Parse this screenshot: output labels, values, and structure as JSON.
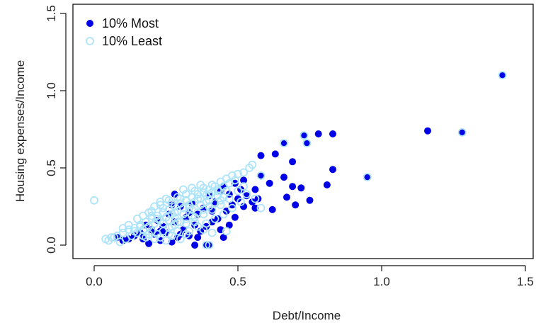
{
  "chart_data": {
    "type": "scatter",
    "xlabel": "Debt/Income",
    "ylabel": "Housing expenses/Income",
    "xlim": [
      0,
      1.5
    ],
    "ylim": [
      0,
      1.5
    ],
    "x_ticks": [
      "0.0",
      "0.5",
      "1.0",
      "1.5"
    ],
    "y_ticks": [
      "0.0",
      "0.5",
      "1.0",
      "1.5"
    ],
    "legend_position": "top-left",
    "grid": false,
    "colors": {
      "most": "#0000e6",
      "least": "#aee4fa"
    },
    "series": [
      {
        "name": "10% Most",
        "marker": "filled-circle",
        "points": [
          [
            1.42,
            1.1
          ],
          [
            1.28,
            0.73
          ],
          [
            1.16,
            0.74
          ],
          [
            0.95,
            0.44
          ],
          [
            0.83,
            0.72
          ],
          [
            0.83,
            0.49
          ],
          [
            0.81,
            0.39
          ],
          [
            0.78,
            0.72
          ],
          [
            0.75,
            0.29
          ],
          [
            0.74,
            0.66
          ],
          [
            0.73,
            0.71
          ],
          [
            0.72,
            0.37
          ],
          [
            0.7,
            0.26
          ],
          [
            0.69,
            0.38
          ],
          [
            0.69,
            0.54
          ],
          [
            0.67,
            0.31
          ],
          [
            0.66,
            0.44
          ],
          [
            0.66,
            0.66
          ],
          [
            0.63,
            0.59
          ],
          [
            0.62,
            0.23
          ],
          [
            0.61,
            0.4
          ],
          [
            0.58,
            0.58
          ],
          [
            0.58,
            0.45
          ],
          [
            0.57,
            0.3
          ],
          [
            0.56,
            0.36
          ],
          [
            0.56,
            0.24
          ],
          [
            0.55,
            0.28
          ],
          [
            0.53,
            0.32
          ],
          [
            0.52,
            0.25
          ],
          [
            0.51,
            0.36
          ],
          [
            0.5,
            0.3
          ],
          [
            0.49,
            0.4
          ],
          [
            0.48,
            0.26
          ],
          [
            0.47,
            0.33
          ],
          [
            0.46,
            0.22
          ],
          [
            0.45,
            0.38
          ],
          [
            0.44,
            0.35
          ],
          [
            0.43,
            0.17
          ],
          [
            0.42,
            0.28
          ],
          [
            0.41,
            0.15
          ],
          [
            0.4,
            0.32
          ],
          [
            0.39,
            0.12
          ],
          [
            0.38,
            0.24
          ],
          [
            0.37,
            0.09
          ],
          [
            0.36,
            0.2
          ],
          [
            0.35,
            0.13
          ],
          [
            0.34,
            0.27
          ],
          [
            0.33,
            0.06
          ],
          [
            0.32,
            0.18
          ],
          [
            0.31,
            0.1
          ],
          [
            0.3,
            0.25
          ],
          [
            0.29,
            0.05
          ],
          [
            0.28,
            0.15
          ],
          [
            0.27,
            0.02
          ],
          [
            0.26,
            0.2
          ],
          [
            0.25,
            0.08
          ],
          [
            0.24,
            0.12
          ],
          [
            0.23,
            0.03
          ],
          [
            0.22,
            0.16
          ],
          [
            0.21,
            0.07
          ],
          [
            0.2,
            0.1
          ],
          [
            0.19,
            0.01
          ],
          [
            0.18,
            0.13
          ],
          [
            0.17,
            0.04
          ],
          [
            0.16,
            0.08
          ],
          [
            0.14,
            0.06
          ],
          [
            0.12,
            0.04
          ],
          [
            0.1,
            0.03
          ],
          [
            0.08,
            0.05
          ],
          [
            0.35,
            0.0
          ],
          [
            0.39,
            0.0
          ],
          [
            0.4,
            0.0
          ],
          [
            0.28,
            0.33
          ],
          [
            0.45,
            0.05
          ],
          [
            0.47,
            0.13
          ],
          [
            0.49,
            0.18
          ],
          [
            0.52,
            0.42
          ],
          [
            0.3,
            0.07
          ],
          [
            0.33,
            0.21
          ],
          [
            0.36,
            0.05
          ],
          [
            0.41,
            0.22
          ],
          [
            0.44,
            0.1
          ],
          [
            0.27,
            0.26
          ],
          [
            0.23,
            0.09
          ]
        ]
      },
      {
        "name": "10% Least",
        "marker": "open-circle",
        "points": [
          [
            1.42,
            1.1
          ],
          [
            1.28,
            0.73
          ],
          [
            0.95,
            0.44
          ],
          [
            0.74,
            0.66
          ],
          [
            0.73,
            0.71
          ],
          [
            0.66,
            0.66
          ],
          [
            0.58,
            0.45
          ],
          [
            0.58,
            0.24
          ],
          [
            0.56,
            0.3
          ],
          [
            0.55,
            0.52
          ],
          [
            0.54,
            0.5
          ],
          [
            0.52,
            0.47
          ],
          [
            0.5,
            0.46
          ],
          [
            0.48,
            0.45
          ],
          [
            0.46,
            0.43
          ],
          [
            0.44,
            0.41
          ],
          [
            0.42,
            0.38
          ],
          [
            0.4,
            0.36
          ],
          [
            0.38,
            0.34
          ],
          [
            0.36,
            0.33
          ],
          [
            0.34,
            0.31
          ],
          [
            0.32,
            0.29
          ],
          [
            0.3,
            0.27
          ],
          [
            0.28,
            0.25
          ],
          [
            0.26,
            0.23
          ],
          [
            0.24,
            0.21
          ],
          [
            0.22,
            0.19
          ],
          [
            0.2,
            0.17
          ],
          [
            0.18,
            0.15
          ],
          [
            0.16,
            0.13
          ],
          [
            0.14,
            0.11
          ],
          [
            0.12,
            0.1
          ],
          [
            0.1,
            0.08
          ],
          [
            0.08,
            0.06
          ],
          [
            0.06,
            0.05
          ],
          [
            0.04,
            0.04
          ],
          [
            0.0,
            0.29
          ],
          [
            0.05,
            0.03
          ],
          [
            0.07,
            0.05
          ],
          [
            0.09,
            0.02
          ],
          [
            0.11,
            0.04
          ],
          [
            0.13,
            0.06
          ],
          [
            0.15,
            0.08
          ],
          [
            0.17,
            0.1
          ],
          [
            0.19,
            0.12
          ],
          [
            0.21,
            0.14
          ],
          [
            0.23,
            0.16
          ],
          [
            0.25,
            0.18
          ],
          [
            0.27,
            0.2
          ],
          [
            0.29,
            0.22
          ],
          [
            0.31,
            0.24
          ],
          [
            0.33,
            0.26
          ],
          [
            0.35,
            0.28
          ],
          [
            0.37,
            0.3
          ],
          [
            0.39,
            0.32
          ],
          [
            0.41,
            0.34
          ],
          [
            0.43,
            0.36
          ],
          [
            0.45,
            0.38
          ],
          [
            0.47,
            0.4
          ],
          [
            0.49,
            0.42
          ],
          [
            0.22,
            0.07
          ],
          [
            0.24,
            0.09
          ],
          [
            0.26,
            0.11
          ],
          [
            0.28,
            0.13
          ],
          [
            0.3,
            0.15
          ],
          [
            0.32,
            0.17
          ],
          [
            0.34,
            0.19
          ],
          [
            0.36,
            0.21
          ],
          [
            0.38,
            0.23
          ],
          [
            0.4,
            0.25
          ],
          [
            0.42,
            0.27
          ],
          [
            0.44,
            0.29
          ],
          [
            0.2,
            0.22
          ],
          [
            0.23,
            0.26
          ],
          [
            0.26,
            0.29
          ],
          [
            0.29,
            0.31
          ],
          [
            0.32,
            0.33
          ],
          [
            0.35,
            0.35
          ],
          [
            0.38,
            0.37
          ],
          [
            0.41,
            0.39
          ],
          [
            0.18,
            0.05
          ],
          [
            0.21,
            0.04
          ],
          [
            0.25,
            0.03
          ],
          [
            0.27,
            0.06
          ],
          [
            0.3,
            0.04
          ],
          [
            0.33,
            0.09
          ],
          [
            0.36,
            0.12
          ],
          [
            0.39,
            0.14
          ],
          [
            0.42,
            0.17
          ],
          [
            0.45,
            0.2
          ],
          [
            0.48,
            0.24
          ],
          [
            0.51,
            0.28
          ],
          [
            0.53,
            0.33
          ],
          [
            0.15,
            0.17
          ],
          [
            0.17,
            0.19
          ],
          [
            0.19,
            0.21
          ],
          [
            0.24,
            0.14
          ],
          [
            0.26,
            0.16
          ],
          [
            0.28,
            0.18
          ],
          [
            0.31,
            0.2
          ],
          [
            0.34,
            0.23
          ],
          [
            0.37,
            0.26
          ],
          [
            0.4,
            0.29
          ],
          [
            0.43,
            0.32
          ],
          [
            0.46,
            0.35
          ],
          [
            0.12,
            0.13
          ],
          [
            0.1,
            0.11
          ],
          [
            0.2,
            0.09
          ],
          [
            0.27,
            0.12
          ],
          [
            0.29,
            0.15
          ],
          [
            0.32,
            0.14
          ],
          [
            0.35,
            0.18
          ],
          [
            0.38,
            0.2
          ],
          [
            0.41,
            0.23
          ],
          [
            0.44,
            0.26
          ],
          [
            0.47,
            0.3
          ],
          [
            0.31,
            0.36
          ],
          [
            0.34,
            0.37
          ],
          [
            0.37,
            0.39
          ],
          [
            0.25,
            0.3
          ],
          [
            0.21,
            0.25
          ],
          [
            0.23,
            0.28
          ],
          [
            0.52,
            0.38
          ],
          [
            0.5,
            0.35
          ],
          [
            0.45,
            0.31
          ],
          [
            0.39,
            0.28
          ],
          [
            0.33,
            0.24
          ],
          [
            0.28,
            0.21
          ],
          [
            0.22,
            0.17
          ],
          [
            0.16,
            0.12
          ],
          [
            0.14,
            0.09
          ],
          [
            0.36,
            0.3
          ],
          [
            0.4,
            0.33
          ],
          [
            0.43,
            0.35
          ],
          [
            0.3,
            0.3
          ],
          [
            0.27,
            0.27
          ],
          [
            0.24,
            0.24
          ],
          [
            0.2,
            0.19
          ],
          [
            0.35,
            0.15
          ],
          [
            0.38,
            0.1
          ],
          [
            0.41,
            0.08
          ],
          [
            0.32,
            0.07
          ],
          [
            0.29,
            0.09
          ],
          [
            0.26,
            0.07
          ],
          [
            0.23,
            0.05
          ],
          [
            0.19,
            0.07
          ],
          [
            0.17,
            0.06
          ],
          [
            0.39,
            0.0
          ],
          [
            0.4,
            0.0
          ],
          [
            0.46,
            0.09
          ]
        ]
      }
    ]
  }
}
